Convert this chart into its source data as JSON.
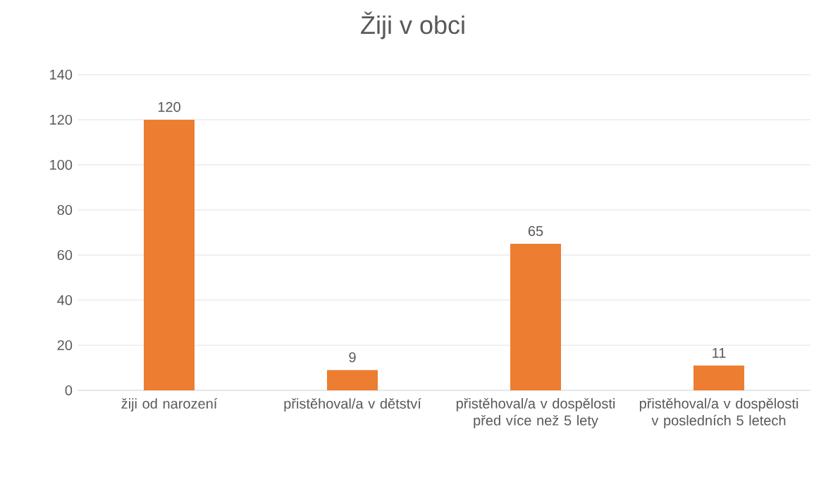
{
  "chart_data": {
    "type": "bar",
    "title": "Žiji v obci",
    "categories": [
      "žiji od narození",
      "přistěhoval/a v dětství",
      "přistěhoval/a v dospělosti před více než 5 lety",
      "přistěhoval/a v dospělosti v posledních 5 letech"
    ],
    "values": [
      120,
      9,
      65,
      11
    ],
    "color": "#ed7d31",
    "ylim": [
      0,
      140
    ],
    "yticks": [
      0,
      20,
      40,
      60,
      80,
      100,
      120,
      140
    ],
    "grid": "y",
    "data_labels": true
  }
}
